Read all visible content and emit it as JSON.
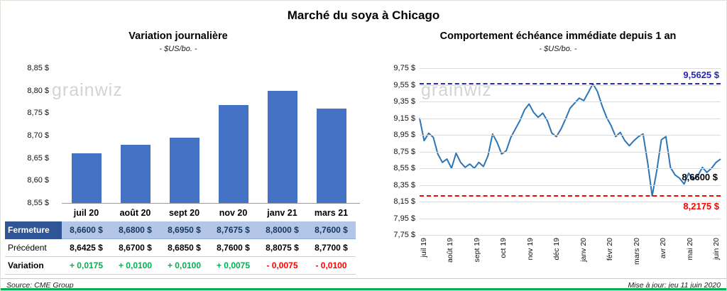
{
  "page": {
    "title": "Marché du soya à Chicago",
    "source": "Source: CME Group",
    "updated": "Mise à jour: jeu 11 juin 2020",
    "watermark": "grainwiz"
  },
  "table": {
    "rows": [
      {
        "key": "fermeture",
        "label": "Fermeture",
        "values": [
          "8,6600 $",
          "8,6800 $",
          "8,6950 $",
          "8,7675 $",
          "8,8000 $",
          "8,7600 $"
        ]
      },
      {
        "key": "precedent",
        "label": "Précédent",
        "values": [
          "8,6425 $",
          "8,6700 $",
          "8,6850 $",
          "8,7600 $",
          "8,8075 $",
          "8,7700 $"
        ]
      },
      {
        "key": "variation",
        "label": "Variation",
        "values": [
          "+ 0,0175",
          "+ 0,0100",
          "+ 0,0100",
          "+ 0,0075",
          "- 0,0075",
          "- 0,0100"
        ]
      }
    ]
  },
  "chart_data": [
    {
      "type": "bar",
      "title": "Variation journalière",
      "subtitle": "- $US/bo. -",
      "categories": [
        "juil 20",
        "août 20",
        "sept 20",
        "nov 20",
        "janv 21",
        "mars 21"
      ],
      "values": [
        8.66,
        8.68,
        8.695,
        8.7675,
        8.8,
        8.76
      ],
      "ylim": [
        8.55,
        8.85
      ],
      "ytick_labels": [
        "8,85 $",
        "8,80 $",
        "8,75 $",
        "8,70 $",
        "8,65 $",
        "8,60 $",
        "8,55 $"
      ],
      "bar_color": "#4472C4",
      "legend": "none",
      "grid": "off"
    },
    {
      "type": "line",
      "title": "Comportement échéance immédiate depuis 1 an",
      "subtitle": "- $US/bo. -",
      "x_labels": [
        "juil 19",
        "août 19",
        "sept 19",
        "oct 19",
        "nov 19",
        "déc 19",
        "janv 20",
        "févr 20",
        "mars 20",
        "avr 20",
        "mai 20",
        "juin 20"
      ],
      "values": [
        9.15,
        8.88,
        8.97,
        8.92,
        8.72,
        8.62,
        8.66,
        8.55,
        8.73,
        8.62,
        8.56,
        8.6,
        8.55,
        8.62,
        8.57,
        8.7,
        8.96,
        8.86,
        8.72,
        8.76,
        8.92,
        9.02,
        9.12,
        9.25,
        9.32,
        9.22,
        9.16,
        9.21,
        9.12,
        8.97,
        8.93,
        9.02,
        9.14,
        9.27,
        9.33,
        9.39,
        9.36,
        9.46,
        9.5625,
        9.47,
        9.3,
        9.16,
        9.06,
        8.93,
        8.98,
        8.88,
        8.82,
        8.88,
        8.93,
        8.96,
        8.62,
        8.2175,
        8.52,
        8.89,
        8.93,
        8.56,
        8.47,
        8.43,
        8.36,
        8.49,
        8.41,
        8.46,
        8.56,
        8.5,
        8.55,
        8.62,
        8.66
      ],
      "ylim": [
        7.75,
        9.75
      ],
      "ytick_labels": [
        "9,75 $",
        "9,55 $",
        "9,35 $",
        "9,15 $",
        "8,95 $",
        "8,75 $",
        "8,55 $",
        "8,35 $",
        "8,15 $",
        "7,95 $",
        "7,75 $"
      ],
      "line_color": "#2E75B6",
      "grid": "on",
      "legend": "none",
      "annotations": {
        "high": {
          "value": 9.5625,
          "label": "9,5625 $",
          "color": "#2727B5"
        },
        "low": {
          "value": 8.2175,
          "label": "8,2175 $",
          "color": "#FF0000"
        },
        "last": {
          "value": 8.66,
          "label": "8,6600 $",
          "color": "#000000"
        }
      }
    }
  ]
}
